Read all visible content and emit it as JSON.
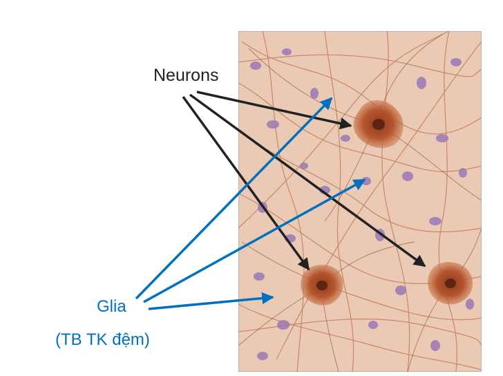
{
  "labels": {
    "neurons": "Neurons",
    "glia": "Glia",
    "glia_sub": "(TB TK đệm)"
  },
  "colors": {
    "background": "#ffffff",
    "neuron_arrow": "#222222",
    "glia_arrow": "#0070c0",
    "tissue_base": "#e8c7b2",
    "cell_body": "#b5552f",
    "nucleus": "#9a78b5"
  }
}
